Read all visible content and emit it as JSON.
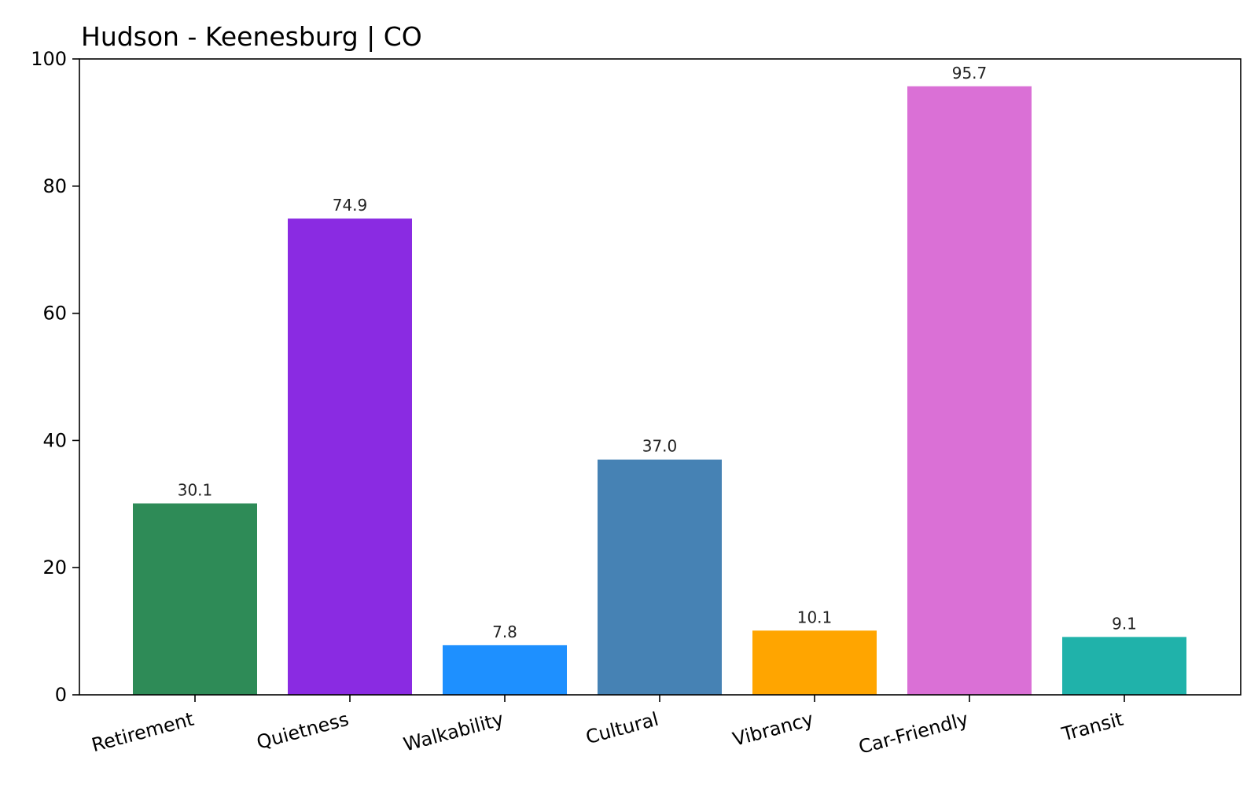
{
  "chart_data": {
    "type": "bar",
    "title": "Hudson - Keenesburg | CO",
    "xlabel": "",
    "ylabel": "",
    "ylim": [
      0,
      100
    ],
    "yticks": [
      0,
      20,
      40,
      60,
      80,
      100
    ],
    "grid": false,
    "categories": [
      "Retirement",
      "Quietness",
      "Walkability",
      "Cultural",
      "Vibrancy",
      "Car-Friendly",
      "Transit"
    ],
    "values": [
      30.1,
      74.9,
      7.8,
      37.0,
      10.1,
      95.7,
      9.1
    ],
    "data_labels": [
      "30.1",
      "74.9",
      "7.8",
      "37.0",
      "10.1",
      "95.7",
      "9.1"
    ],
    "colors": [
      "#2e8b57",
      "#8a2be2",
      "#1e90ff",
      "#4682b4",
      "#ffa500",
      "#da70d6",
      "#20b2aa"
    ]
  }
}
